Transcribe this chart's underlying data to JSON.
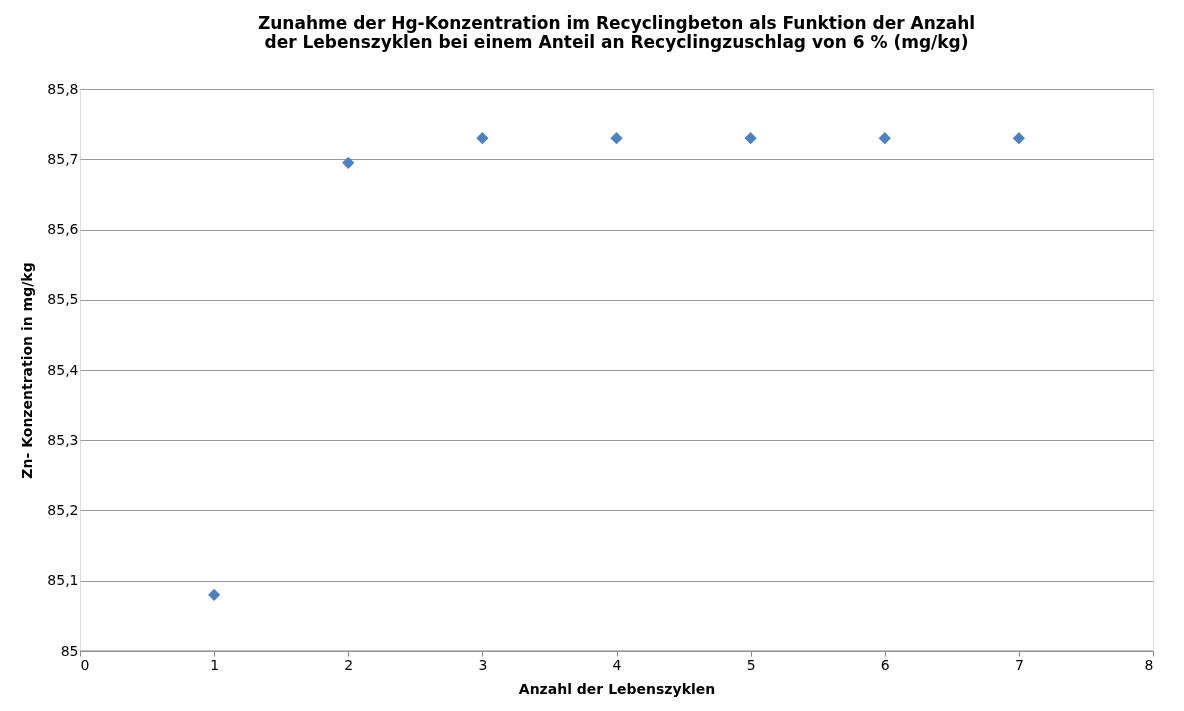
{
  "chart_data": {
    "type": "scatter",
    "title": [
      "Zunahme der Hg-Konzentration im Recyclingbeton als Funktion der Anzahl",
      "der Lebenszyklen bei einem Anteil an Recyclingzuschlag von 6 % (mg/kg)"
    ],
    "xlabel": "Anzahl der Lebenszyklen",
    "ylabel": "Zn- Konzentration in mg/kg",
    "x": [
      1,
      2,
      3,
      4,
      5,
      6,
      7
    ],
    "series": [
      {
        "color": "#4f81bd",
        "values": [
          85.08,
          85.695,
          85.73,
          85.73,
          85.73,
          85.73,
          85.73
        ]
      }
    ],
    "xlim": [
      0,
      8
    ],
    "xticks": [
      0,
      1,
      2,
      3,
      4,
      5,
      6,
      7,
      8
    ],
    "ylim": [
      85,
      85.8
    ],
    "yticks": [
      {
        "value": 85,
        "label": "85"
      },
      {
        "value": 85.1,
        "label": "85,1"
      },
      {
        "value": 85.2,
        "label": "85,2"
      },
      {
        "value": 85.3,
        "label": "85,3"
      },
      {
        "value": 85.4,
        "label": "85,4"
      },
      {
        "value": 85.5,
        "label": "85,5"
      },
      {
        "value": 85.6,
        "label": "85,6"
      },
      {
        "value": 85.7,
        "label": "85,7"
      },
      {
        "value": 85.8,
        "label": "85,8"
      }
    ],
    "grid": "y",
    "marker": "diamond"
  }
}
